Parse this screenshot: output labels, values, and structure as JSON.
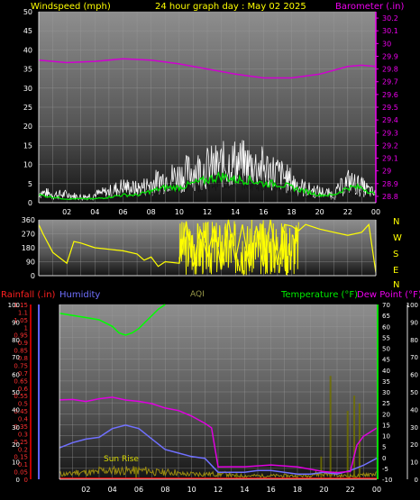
{
  "header": {
    "wind_title": "Windspeed (mph)",
    "date_title": "24 hour graph day : May 02 2025",
    "baro_title": "Barometer (.in)"
  },
  "bottom_header": {
    "rain_title": "Rainfall (.in)",
    "humidity_title": "Humidity",
    "aqi_title": "AQI",
    "temp_title": "Temperature (°F)",
    "dew_title": "Dew Point (°F)"
  },
  "annotation": {
    "sunrise": "Sun Rise"
  },
  "colors": {
    "wind": "#ffffff",
    "wind_avg": "#00e000",
    "barometer": "#d000d0",
    "direction": "#ffff00",
    "temperature": "#00ff00",
    "dewpoint": "#e000e0",
    "humidity": "#7070ff",
    "rain": "#ff0000",
    "aqi": "#707000",
    "axis_title": "#ffff00"
  },
  "chart_data": [
    {
      "type": "line",
      "title": "Windspeed (mph)",
      "x_ticks": [
        "02",
        "04",
        "06",
        "08",
        "10",
        "12",
        "14",
        "16",
        "18",
        "20",
        "22",
        "00"
      ],
      "y_left_ticks": [
        "0",
        "5",
        "10",
        "15",
        "20",
        "25",
        "30",
        "35",
        "40",
        "45",
        "50"
      ],
      "y_right_ticks": [
        "28.8",
        "28.9",
        "29",
        "29.1",
        "29.2",
        "29.3",
        "29.4",
        "29.5",
        "29.6",
        "29.7",
        "29.8",
        "29.9",
        "30",
        "30.1",
        "30.2"
      ],
      "ylim_left": [
        0,
        50
      ],
      "ylim_right": [
        28.75,
        30.25
      ],
      "series": [
        {
          "name": "Windspeed",
          "x": [
            0,
            1,
            2,
            3,
            4,
            5,
            6,
            7,
            8,
            9,
            10,
            11,
            12,
            13,
            14,
            15,
            16,
            17,
            18,
            19,
            20,
            21,
            22,
            23,
            24
          ],
          "values": [
            4,
            3,
            3,
            2,
            3,
            4,
            6,
            5,
            7,
            9,
            10,
            12,
            13,
            14,
            15,
            14,
            13,
            11,
            8,
            5,
            4,
            3,
            8,
            6,
            3
          ]
        },
        {
          "name": "Windspeed avg",
          "x": [
            0,
            1,
            2,
            3,
            4,
            5,
            6,
            7,
            8,
            9,
            10,
            11,
            12,
            13,
            14,
            15,
            16,
            17,
            18,
            19,
            20,
            21,
            22,
            23,
            24
          ],
          "values": [
            2,
            1.5,
            1,
            1,
            1,
            1.5,
            2,
            2,
            3,
            4,
            4,
            5,
            6,
            7,
            6,
            6,
            5,
            5,
            4,
            3,
            2,
            2,
            4,
            4,
            2
          ]
        },
        {
          "name": "Barometer",
          "x": [
            0,
            2,
            4,
            6,
            8,
            10,
            12,
            14,
            16,
            18,
            20,
            22,
            23,
            24
          ],
          "values": [
            29.87,
            29.85,
            29.86,
            29.88,
            29.87,
            29.84,
            29.8,
            29.76,
            29.73,
            29.73,
            29.76,
            29.82,
            29.83,
            29.82
          ]
        }
      ]
    },
    {
      "type": "scatter",
      "title": "",
      "y_left_ticks": [
        "0",
        "90",
        "180",
        "270",
        "360"
      ],
      "y_right_labels": [
        "N",
        "W",
        "S",
        "E",
        "N"
      ],
      "ylim": [
        0,
        360
      ],
      "series": [
        {
          "name": "Wind direction",
          "x": [
            0,
            0.3,
            1,
            2,
            2.5,
            3,
            4,
            5,
            6,
            7,
            7.5,
            8,
            8.5,
            9,
            10,
            10.5,
            11,
            11.5,
            12,
            12.5,
            13,
            13.5,
            14,
            14.5,
            15,
            15.5,
            16,
            16.5,
            17,
            17.5,
            18,
            18.5,
            19,
            20,
            21,
            22,
            23,
            23.5,
            24
          ],
          "values": [
            330,
            270,
            150,
            80,
            220,
            210,
            180,
            170,
            160,
            140,
            100,
            120,
            60,
            90,
            80,
            350,
            60,
            300,
            120,
            320,
            40,
            360,
            100,
            330,
            50,
            320,
            60,
            360,
            70,
            330,
            320,
            290,
            330,
            300,
            280,
            260,
            280,
            330,
            20
          ]
        }
      ]
    },
    {
      "type": "line",
      "title": "",
      "x_ticks": [
        "02",
        "04",
        "06",
        "08",
        "10",
        "12",
        "14",
        "16",
        "18",
        "20",
        "22",
        "00"
      ],
      "y_rain_ticks": [
        "0",
        "0.05",
        "0.1",
        "0.15",
        "0.2",
        "0.25",
        "0.3",
        "0.35",
        "0.4",
        "0.45",
        "0.5",
        "0.55",
        "0.6",
        "0.65",
        "0.7",
        "0.75",
        "0.8",
        "0.85",
        "0.9",
        "0.95",
        "1",
        "1.05",
        "1.1",
        "1.15"
      ],
      "y_humidity_ticks": [
        "0",
        "10",
        "20",
        "30",
        "40",
        "50",
        "60",
        "70",
        "80",
        "90",
        "100"
      ],
      "y_temp_ticks": [
        "-10",
        "-5",
        "0",
        "5",
        "10",
        "15",
        "20",
        "25",
        "30",
        "35",
        "40",
        "45",
        "50",
        "55",
        "60",
        "65",
        "70"
      ],
      "y_aqi_ticks": [
        "0",
        "10",
        "20",
        "30",
        "40",
        "50",
        "60",
        "70",
        "80",
        "90",
        "100"
      ],
      "ylim_rain": [
        0,
        1.15
      ],
      "ylim_humidity": [
        0,
        100
      ],
      "ylim_temp": [
        -10,
        70
      ],
      "series": [
        {
          "name": "Temperature",
          "x": [
            0,
            1,
            2,
            3,
            4,
            4.5,
            5,
            5.5,
            6,
            6.5,
            7,
            7.5,
            8
          ],
          "values": [
            66,
            65,
            64,
            63,
            60,
            57,
            56,
            57,
            59,
            62,
            65,
            68,
            70
          ]
        },
        {
          "name": "Dew Point",
          "x": [
            0,
            1,
            2,
            3,
            4,
            5,
            6,
            7,
            8,
            9,
            10,
            11,
            11.5,
            12,
            14,
            16,
            18,
            20,
            21,
            22,
            22.5,
            23,
            24
          ],
          "values": [
            26,
            27,
            26,
            27,
            27,
            26,
            26,
            25,
            23,
            21,
            19,
            16,
            13,
            -4,
            -4,
            -4,
            -4,
            -6,
            -7,
            -7,
            6,
            10,
            14
          ]
        },
        {
          "name": "Humidity",
          "x": [
            0,
            1,
            2,
            3,
            4,
            5,
            6,
            7,
            8,
            9,
            10,
            11,
            12,
            13,
            14,
            15,
            16,
            17,
            18,
            19,
            20,
            21,
            22,
            23,
            24
          ],
          "values": [
            18,
            21,
            23,
            24,
            29,
            31,
            29,
            23,
            17,
            15,
            13,
            12,
            4,
            4,
            4,
            5,
            5,
            4,
            3,
            3,
            4,
            3,
            5,
            8,
            12
          ]
        },
        {
          "name": "AQI",
          "x": [
            0,
            2,
            4,
            6,
            8,
            10,
            12,
            14,
            16,
            18,
            20,
            22,
            24
          ],
          "values": [
            3,
            4,
            5,
            5,
            4,
            3,
            3,
            2,
            2,
            2,
            3,
            2,
            3
          ]
        }
      ]
    }
  ]
}
